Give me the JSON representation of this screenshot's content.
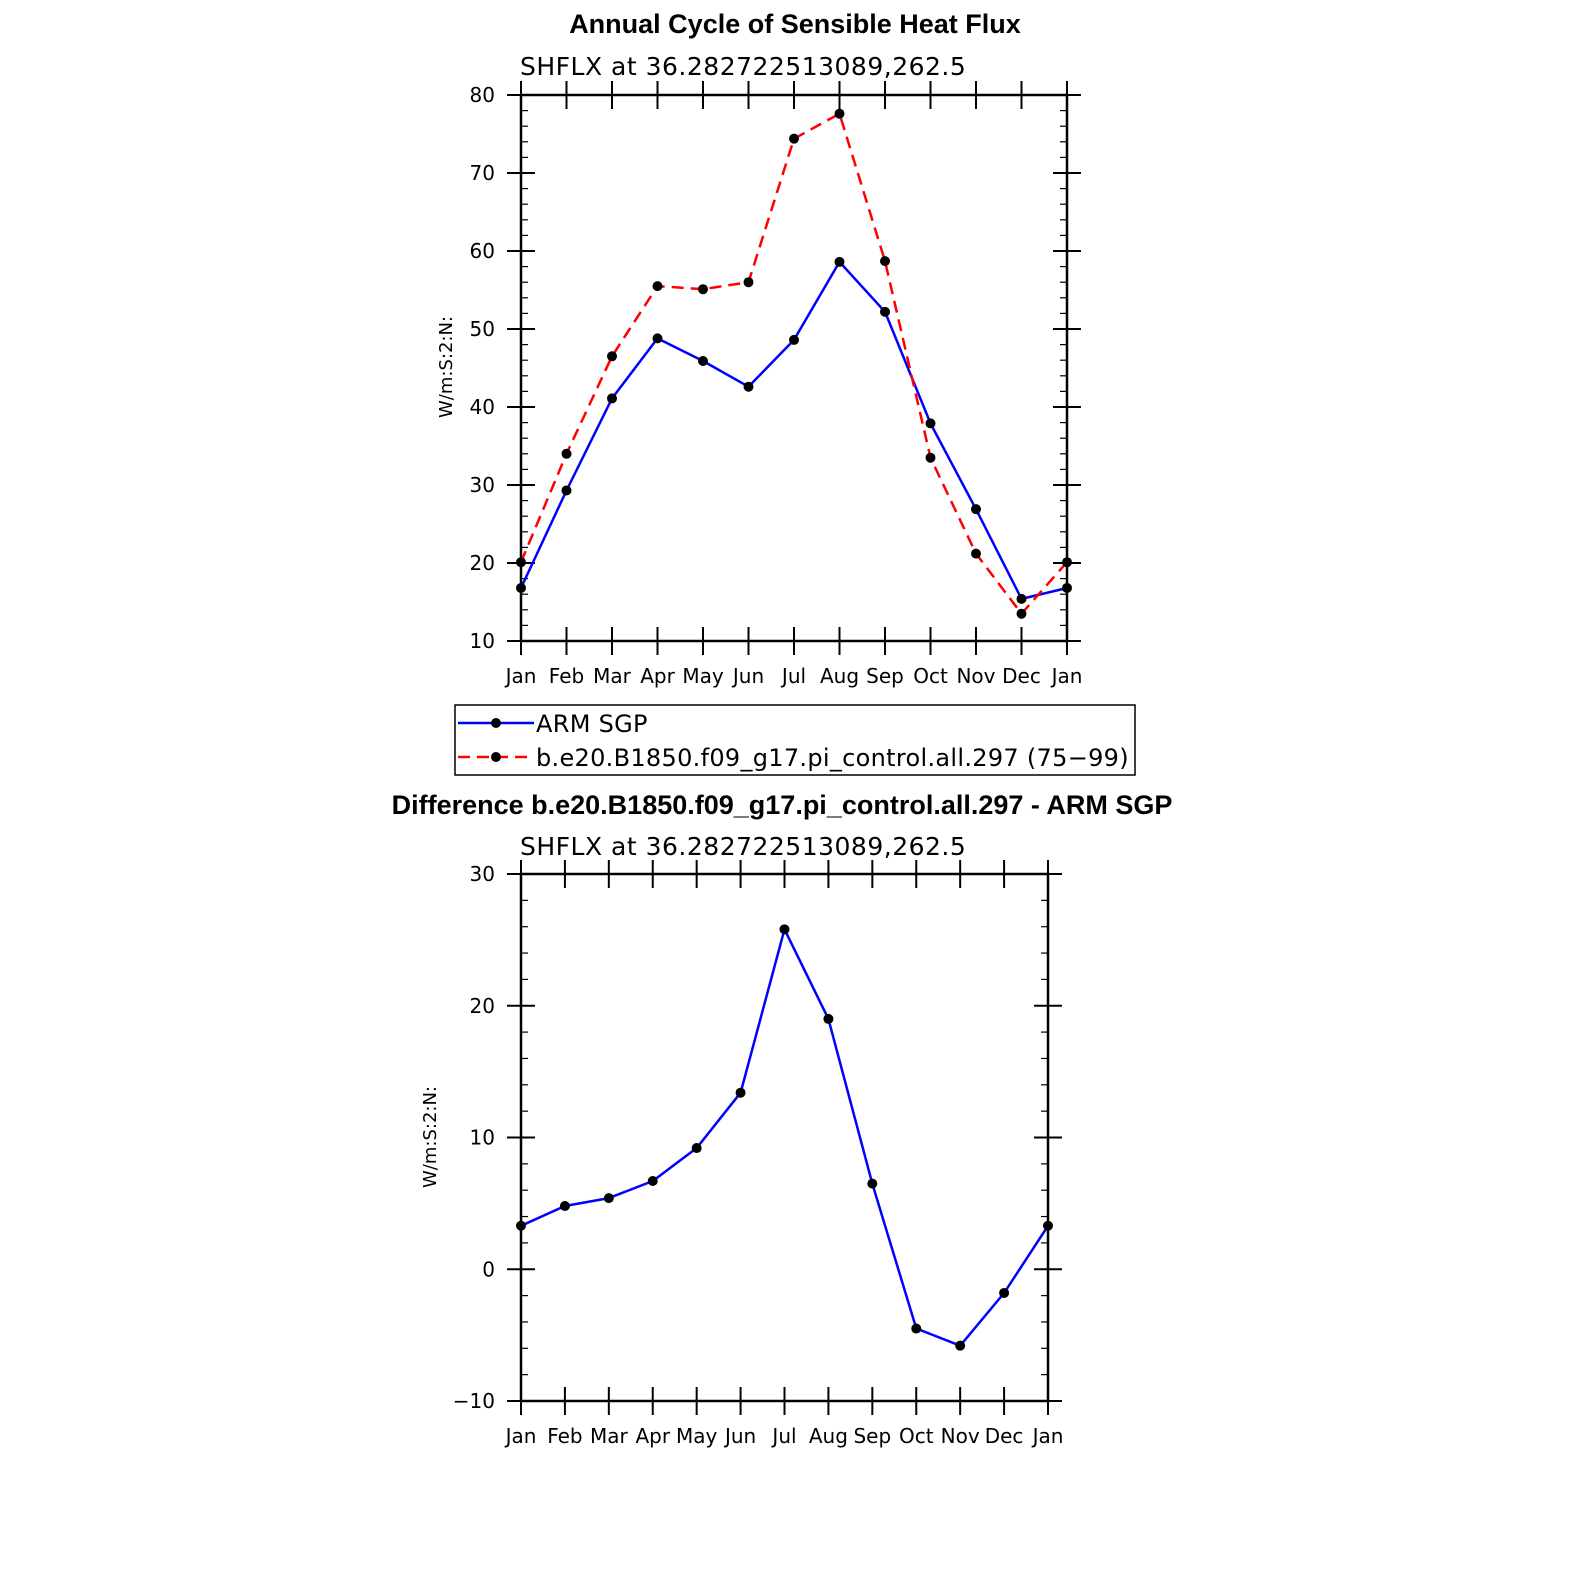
{
  "colors": {
    "obs": "#0000ff",
    "model": "#ff0000",
    "marker": "#000000",
    "axes": "#000000"
  },
  "chart_data": [
    {
      "type": "line",
      "title": "Annual Cycle of Sensible Heat Flux",
      "subtitle": "SHFLX at 36.282722513089,262.5",
      "xlabel": "",
      "ylabel": "W/m:S:2:N:",
      "categories": [
        "Jan",
        "Feb",
        "Mar",
        "Apr",
        "May",
        "Jun",
        "Jul",
        "Aug",
        "Sep",
        "Oct",
        "Nov",
        "Dec",
        "Jan"
      ],
      "ylim": [
        10,
        80
      ],
      "yticks": [
        10,
        20,
        30,
        40,
        50,
        60,
        70,
        80
      ],
      "grid": false,
      "legend": "bottom",
      "series": [
        {
          "name": "ARM SGP",
          "style": "solid",
          "color": "#0000ff",
          "values": [
            16.8,
            29.3,
            41.1,
            48.8,
            45.9,
            42.6,
            48.6,
            58.6,
            52.2,
            37.9,
            26.9,
            15.4,
            16.8
          ]
        },
        {
          "name": "b.e20.B1850.f09_g17.pi_control.all.297 (75−99)",
          "style": "dashed",
          "color": "#ff0000",
          "values": [
            20.1,
            34.0,
            46.5,
            55.5,
            55.1,
            56.0,
            74.4,
            77.6,
            58.7,
            33.5,
            21.2,
            13.5,
            20.1
          ]
        }
      ]
    },
    {
      "type": "line",
      "title": "Difference b.e20.B1850.f09_g17.pi_control.all.297 - ARM SGP",
      "subtitle": "SHFLX at 36.282722513089,262.5",
      "xlabel": "",
      "ylabel": "W/m:S:2:N:",
      "categories": [
        "Jan",
        "Feb",
        "Mar",
        "Apr",
        "May",
        "Jun",
        "Jul",
        "Aug",
        "Sep",
        "Oct",
        "Nov",
        "Dec",
        "Jan"
      ],
      "ylim": [
        -10,
        30
      ],
      "yticks": [
        -10,
        0,
        10,
        20,
        30
      ],
      "ytick_labels": [
        "−10",
        "0",
        "10",
        "20",
        "30"
      ],
      "grid": false,
      "series": [
        {
          "color": "#0000ff",
          "style": "solid",
          "values": [
            3.3,
            4.8,
            5.4,
            6.7,
            9.2,
            13.4,
            25.8,
            19.0,
            6.5,
            -4.5,
            -5.8,
            -1.8,
            3.3
          ]
        }
      ]
    }
  ]
}
